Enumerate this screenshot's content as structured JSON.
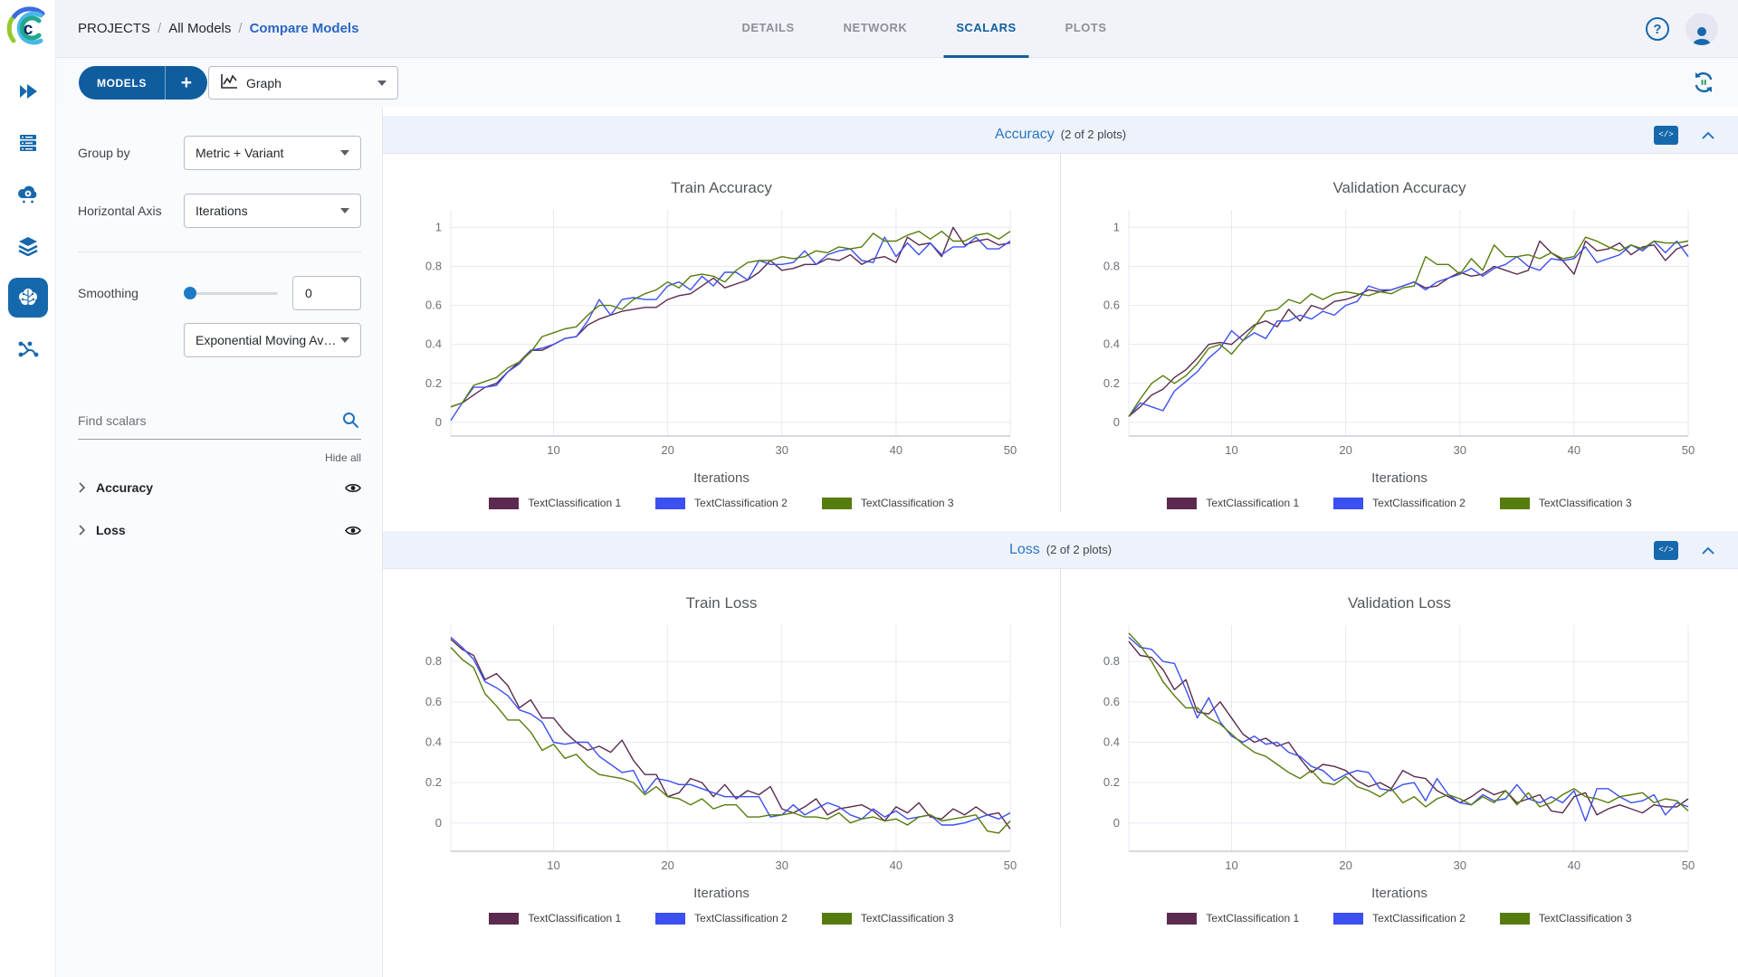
{
  "topbar": {
    "breadcrumb": [
      "PROJECTS",
      "All Models",
      "Compare Models"
    ],
    "tabs": [
      {
        "label": "DETAILS",
        "active": false
      },
      {
        "label": "NETWORK",
        "active": false
      },
      {
        "label": "SCALARS",
        "active": true
      },
      {
        "label": "PLOTS",
        "active": false
      }
    ],
    "help_glyph": "?"
  },
  "sidebar": {
    "icons": [
      "getting-started",
      "queues",
      "workers",
      "datasets",
      "models",
      "pipelines"
    ],
    "active_icon": "models"
  },
  "toolbar": {
    "models_label": "MODELS",
    "add_label": "+",
    "view_selector_value": "Graph"
  },
  "controls": {
    "group_by_label": "Group by",
    "group_by_value": "Metric + Variant",
    "horizontal_axis_label": "Horizontal Axis",
    "horizontal_axis_value": "Iterations",
    "smoothing_label": "Smoothing",
    "smoothing_value": "0",
    "smoothing_type_value": "Exponential Moving Av…",
    "search_placeholder": "Find scalars",
    "hide_all_label": "Hide all",
    "metrics": [
      {
        "label": "Accuracy"
      },
      {
        "label": "Loss"
      }
    ]
  },
  "sections": [
    {
      "title": "Accuracy",
      "count": "(2 of 2 plots)",
      "embed_label": "</>"
    },
    {
      "title": "Loss",
      "count": "(2 of 2 plots)",
      "embed_label": "</>"
    }
  ],
  "colors": {
    "primary_blue": "#0f5d9f",
    "link_blue": "#2a67c5",
    "section_title_blue": "#2b77c4",
    "icon_blue": "#1668ac",
    "refresh_green": "#2f9e5f",
    "grid_line": "#e7e9f2",
    "axis_line": "#bfc2cf",
    "series": [
      "#5b2a4e",
      "#3c4ff0",
      "#567c0d"
    ]
  },
  "chart_data": [
    {
      "type": "line",
      "title": "Train Accuracy",
      "xlabel": "Iterations",
      "x_range": [
        1,
        50
      ],
      "xticks": [
        10,
        20,
        30,
        40,
        50
      ],
      "yticks": [
        0,
        0.2,
        0.4,
        0.6,
        0.8,
        1
      ],
      "ylim": [
        -0.07,
        1.09
      ],
      "grid": true,
      "legend_position": "bottom",
      "series": [
        {
          "name": "TextClassification 1",
          "color": "#5b2a4e",
          "values": [
            0.08,
            0.1,
            0.14,
            0.18,
            0.2,
            0.26,
            0.31,
            0.37,
            0.37,
            0.4,
            0.43,
            0.44,
            0.5,
            0.53,
            0.55,
            0.57,
            0.58,
            0.59,
            0.59,
            0.63,
            0.65,
            0.66,
            0.7,
            0.74,
            0.69,
            0.71,
            0.73,
            0.77,
            0.83,
            0.78,
            0.79,
            0.81,
            0.81,
            0.84,
            0.83,
            0.86,
            0.81,
            0.84,
            0.85,
            0.82,
            0.95,
            0.91,
            0.92,
            0.85,
            1.0,
            0.91,
            0.93,
            0.94,
            0.91,
            0.92
          ]
        },
        {
          "name": "TextClassification 2",
          "color": "#3c4ff0",
          "values": [
            0.01,
            0.1,
            0.18,
            0.18,
            0.19,
            0.26,
            0.3,
            0.37,
            0.38,
            0.4,
            0.43,
            0.44,
            0.52,
            0.63,
            0.55,
            0.63,
            0.64,
            0.63,
            0.63,
            0.7,
            0.72,
            0.68,
            0.75,
            0.7,
            0.77,
            0.77,
            0.73,
            0.83,
            0.81,
            0.81,
            0.82,
            0.88,
            0.81,
            0.86,
            0.88,
            0.89,
            0.83,
            0.82,
            0.95,
            0.85,
            0.92,
            0.86,
            0.92,
            0.86,
            0.9,
            0.9,
            0.95,
            0.89,
            0.89,
            0.93
          ]
        },
        {
          "name": "TextClassification 3",
          "color": "#567c0d",
          "values": [
            0.08,
            0.1,
            0.19,
            0.21,
            0.23,
            0.28,
            0.31,
            0.36,
            0.44,
            0.46,
            0.48,
            0.49,
            0.55,
            0.6,
            0.6,
            0.58,
            0.63,
            0.66,
            0.68,
            0.72,
            0.69,
            0.75,
            0.76,
            0.75,
            0.72,
            0.78,
            0.82,
            0.83,
            0.83,
            0.85,
            0.84,
            0.85,
            0.88,
            0.87,
            0.9,
            0.89,
            0.9,
            0.97,
            0.93,
            0.93,
            0.96,
            0.98,
            0.94,
            0.98,
            0.93,
            0.93,
            0.96,
            0.97,
            0.94,
            0.98
          ]
        }
      ]
    },
    {
      "type": "line",
      "title": "Validation Accuracy",
      "xlabel": "Iterations",
      "x_range": [
        1,
        50
      ],
      "xticks": [
        10,
        20,
        30,
        40,
        50
      ],
      "yticks": [
        0,
        0.2,
        0.4,
        0.6,
        0.8,
        1
      ],
      "ylim": [
        -0.07,
        1.09
      ],
      "grid": true,
      "legend_position": "bottom",
      "series": [
        {
          "name": "TextClassification 1",
          "color": "#5b2a4e",
          "values": [
            0.03,
            0.08,
            0.14,
            0.17,
            0.23,
            0.27,
            0.33,
            0.4,
            0.41,
            0.4,
            0.45,
            0.5,
            0.52,
            0.49,
            0.58,
            0.52,
            0.6,
            0.58,
            0.62,
            0.63,
            0.65,
            0.68,
            0.67,
            0.68,
            0.7,
            0.72,
            0.69,
            0.7,
            0.74,
            0.77,
            0.75,
            0.76,
            0.8,
            0.78,
            0.76,
            0.78,
            0.93,
            0.87,
            0.83,
            0.76,
            0.93,
            0.88,
            0.89,
            0.92,
            0.86,
            0.9,
            0.91,
            0.83,
            0.89,
            0.91
          ]
        },
        {
          "name": "TextClassification 2",
          "color": "#3c4ff0",
          "values": [
            0.03,
            0.1,
            0.08,
            0.06,
            0.16,
            0.21,
            0.26,
            0.33,
            0.38,
            0.47,
            0.42,
            0.46,
            0.43,
            0.52,
            0.52,
            0.55,
            0.53,
            0.57,
            0.55,
            0.6,
            0.62,
            0.7,
            0.68,
            0.68,
            0.7,
            0.72,
            0.68,
            0.72,
            0.74,
            0.76,
            0.79,
            0.75,
            0.79,
            0.81,
            0.85,
            0.8,
            0.78,
            0.84,
            0.83,
            0.84,
            0.9,
            0.82,
            0.84,
            0.86,
            0.91,
            0.88,
            0.93,
            0.87,
            0.93,
            0.85
          ]
        },
        {
          "name": "TextClassification 3",
          "color": "#567c0d",
          "values": [
            0.03,
            0.12,
            0.2,
            0.24,
            0.2,
            0.24,
            0.3,
            0.38,
            0.4,
            0.35,
            0.42,
            0.49,
            0.57,
            0.58,
            0.63,
            0.61,
            0.66,
            0.63,
            0.66,
            0.67,
            0.66,
            0.65,
            0.67,
            0.66,
            0.69,
            0.7,
            0.85,
            0.81,
            0.81,
            0.76,
            0.84,
            0.78,
            0.91,
            0.85,
            0.85,
            0.86,
            0.84,
            0.87,
            0.84,
            0.85,
            0.95,
            0.93,
            0.9,
            0.88,
            0.91,
            0.89,
            0.93,
            0.92,
            0.92,
            0.93
          ]
        }
      ]
    },
    {
      "type": "line",
      "title": "Train Loss",
      "xlabel": "Iterations",
      "x_range": [
        1,
        50
      ],
      "xticks": [
        10,
        20,
        30,
        40,
        50
      ],
      "yticks": [
        0,
        0.2,
        0.4,
        0.6,
        0.8
      ],
      "ylim": [
        -0.14,
        0.98
      ],
      "grid": true,
      "legend_position": "bottom",
      "series": [
        {
          "name": "TextClassification 1",
          "color": "#5b2a4e",
          "values": [
            0.91,
            0.86,
            0.83,
            0.71,
            0.74,
            0.68,
            0.57,
            0.61,
            0.52,
            0.52,
            0.45,
            0.4,
            0.36,
            0.38,
            0.35,
            0.41,
            0.31,
            0.24,
            0.24,
            0.13,
            0.15,
            0.22,
            0.2,
            0.13,
            0.19,
            0.12,
            0.16,
            0.14,
            0.18,
            0.07,
            0.05,
            0.08,
            0.12,
            0.04,
            0.07,
            0.08,
            0.09,
            0.06,
            0.01,
            0.08,
            0.05,
            0.1,
            0.03,
            0.02,
            0.07,
            0.04,
            0.08,
            0.04,
            0.05,
            -0.03
          ]
        },
        {
          "name": "TextClassification 2",
          "color": "#3c4ff0",
          "values": [
            0.92,
            0.87,
            0.81,
            0.7,
            0.67,
            0.63,
            0.56,
            0.54,
            0.5,
            0.4,
            0.39,
            0.4,
            0.4,
            0.33,
            0.29,
            0.25,
            0.26,
            0.15,
            0.22,
            0.21,
            0.19,
            0.19,
            0.17,
            0.15,
            0.13,
            0.13,
            0.13,
            0.13,
            0.03,
            0.04,
            0.09,
            0.04,
            0.07,
            0.1,
            0.08,
            0.04,
            0.02,
            0.07,
            0.03,
            0.06,
            0.02,
            0.03,
            0.04,
            -0.01,
            -0.01,
            0.0,
            0.02,
            0.04,
            0.02,
            0.05
          ]
        },
        {
          "name": "TextClassification 3",
          "color": "#567c0d",
          "values": [
            0.87,
            0.81,
            0.77,
            0.64,
            0.58,
            0.51,
            0.51,
            0.45,
            0.36,
            0.39,
            0.32,
            0.34,
            0.28,
            0.24,
            0.23,
            0.22,
            0.2,
            0.14,
            0.18,
            0.13,
            0.12,
            0.09,
            0.12,
            0.07,
            0.09,
            0.09,
            0.03,
            0.03,
            0.04,
            0.04,
            0.05,
            0.03,
            0.03,
            0.02,
            0.05,
            0.0,
            0.02,
            0.03,
            0.01,
            0.02,
            -0.01,
            0.03,
            0.04,
            0.01,
            0.02,
            0.03,
            0.04,
            -0.04,
            -0.05,
            0.01
          ]
        }
      ]
    },
    {
      "type": "line",
      "title": "Validation Loss",
      "xlabel": "Iterations",
      "x_range": [
        1,
        50
      ],
      "xticks": [
        10,
        20,
        30,
        40,
        50
      ],
      "yticks": [
        0,
        0.2,
        0.4,
        0.6,
        0.8
      ],
      "ylim": [
        -0.14,
        0.98
      ],
      "grid": true,
      "legend_position": "bottom",
      "series": [
        {
          "name": "TextClassification 1",
          "color": "#5b2a4e",
          "values": [
            0.9,
            0.83,
            0.82,
            0.76,
            0.66,
            0.71,
            0.55,
            0.54,
            0.6,
            0.52,
            0.44,
            0.4,
            0.42,
            0.38,
            0.4,
            0.32,
            0.25,
            0.29,
            0.28,
            0.26,
            0.21,
            0.18,
            0.2,
            0.17,
            0.26,
            0.23,
            0.22,
            0.16,
            0.13,
            0.1,
            0.13,
            0.17,
            0.14,
            0.16,
            0.1,
            0.12,
            0.14,
            0.06,
            0.05,
            0.13,
            0.15,
            0.04,
            0.07,
            0.09,
            0.07,
            0.05,
            0.09,
            0.08,
            0.08,
            0.12
          ]
        },
        {
          "name": "TextClassification 2",
          "color": "#3c4ff0",
          "values": [
            0.92,
            0.87,
            0.86,
            0.8,
            0.79,
            0.66,
            0.52,
            0.62,
            0.5,
            0.43,
            0.4,
            0.43,
            0.39,
            0.4,
            0.35,
            0.33,
            0.28,
            0.26,
            0.21,
            0.24,
            0.26,
            0.25,
            0.17,
            0.16,
            0.19,
            0.2,
            0.11,
            0.22,
            0.14,
            0.1,
            0.09,
            0.14,
            0.11,
            0.12,
            0.19,
            0.12,
            0.1,
            0.13,
            0.1,
            0.16,
            0.01,
            0.17,
            0.17,
            0.13,
            0.1,
            0.11,
            0.14,
            0.04,
            0.1,
            0.08
          ]
        },
        {
          "name": "TextClassification 3",
          "color": "#567c0d",
          "values": [
            0.94,
            0.88,
            0.8,
            0.7,
            0.63,
            0.57,
            0.57,
            0.52,
            0.49,
            0.44,
            0.39,
            0.35,
            0.33,
            0.29,
            0.25,
            0.22,
            0.26,
            0.2,
            0.19,
            0.23,
            0.18,
            0.16,
            0.13,
            0.17,
            0.1,
            0.13,
            0.08,
            0.12,
            0.14,
            0.12,
            0.09,
            0.13,
            0.1,
            0.16,
            0.09,
            0.15,
            0.08,
            0.1,
            0.14,
            0.17,
            0.13,
            0.12,
            0.1,
            0.13,
            0.14,
            0.15,
            0.1,
            0.12,
            0.11,
            0.06
          ]
        }
      ]
    }
  ]
}
